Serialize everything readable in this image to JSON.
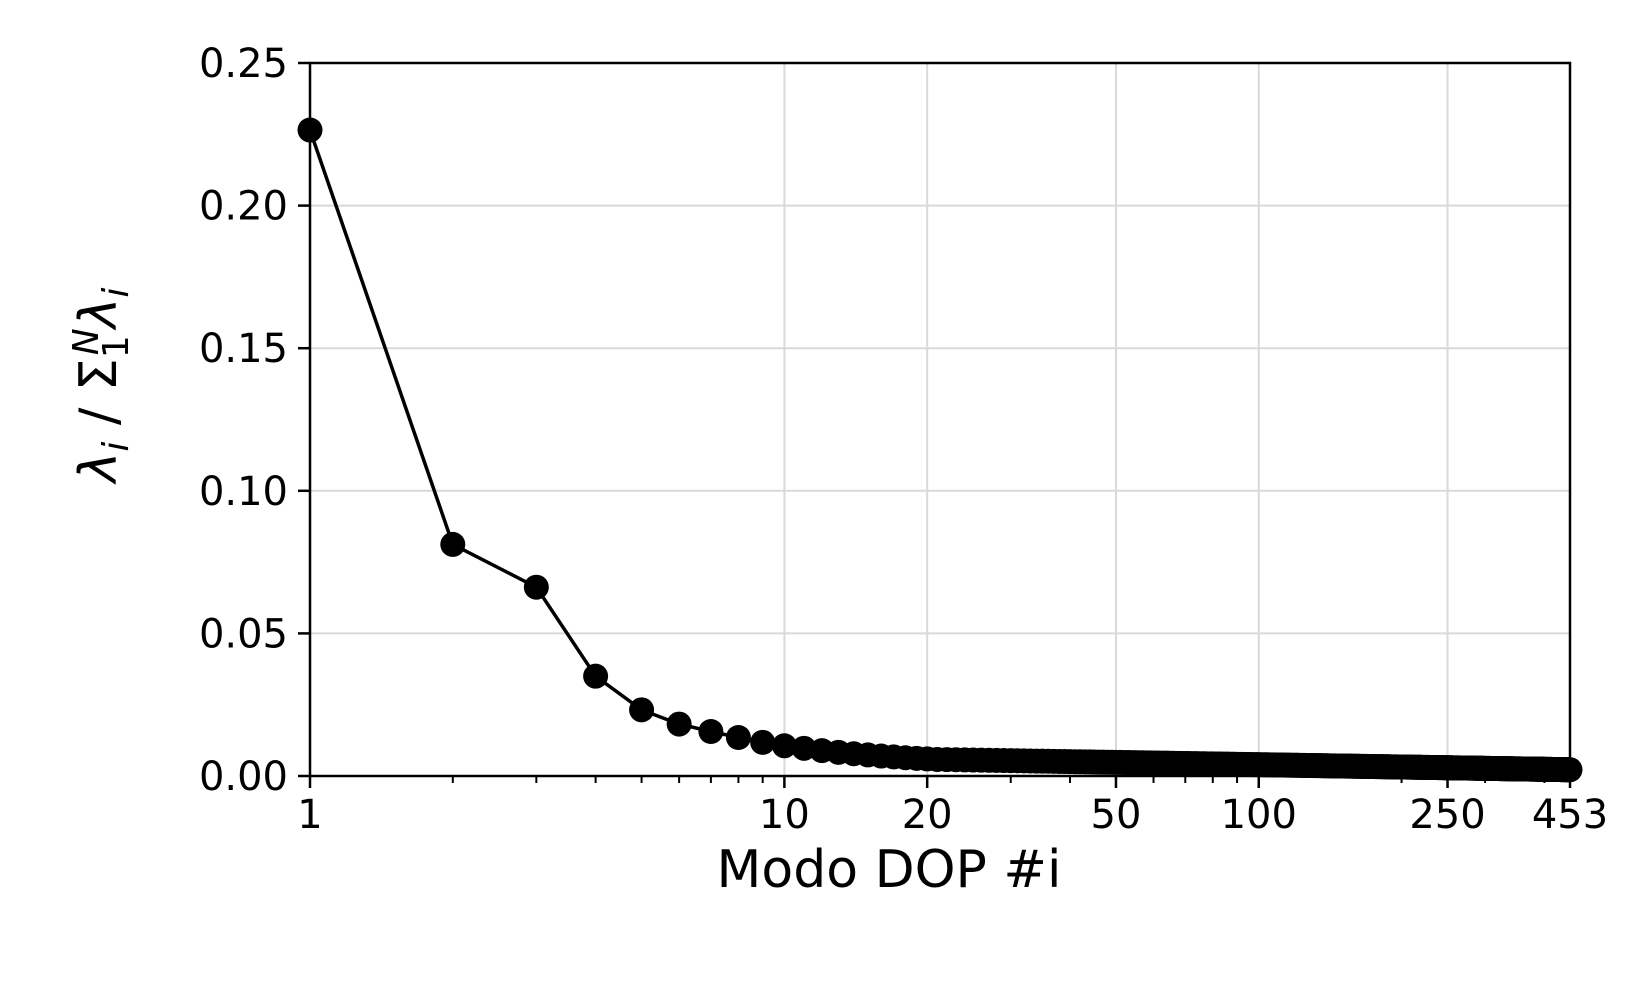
{
  "chart_data": {
    "type": "line",
    "xscale": "log",
    "xlim": [
      1,
      453
    ],
    "ylim": [
      0,
      0.25
    ],
    "grid": true,
    "xlabel": "Modo DOP #i",
    "ylabel": {
      "lambda": "λ",
      "sub_i": "i",
      "slash": " / ",
      "sigma": "Σ",
      "sub_1": "1",
      "sup_N": "N",
      "lambda2": "λ",
      "sub_i2": "i"
    },
    "x_ticks": [
      {
        "value": 1,
        "label": "1"
      },
      {
        "value": 10,
        "label": "10"
      },
      {
        "value": 20,
        "label": "20"
      },
      {
        "value": 50,
        "label": "50"
      },
      {
        "value": 100,
        "label": "100"
      },
      {
        "value": 250,
        "label": "250"
      },
      {
        "value": 453,
        "label": "453"
      }
    ],
    "x_minor_ticks": [
      2,
      3,
      4,
      5,
      6,
      7,
      8,
      9,
      30,
      40,
      60,
      70,
      80,
      90,
      200,
      300,
      400
    ],
    "y_ticks": [
      {
        "value": 0.0,
        "label": "0.00"
      },
      {
        "value": 0.05,
        "label": "0.05"
      },
      {
        "value": 0.1,
        "label": "0.10"
      },
      {
        "value": 0.15,
        "label": "0.15"
      },
      {
        "value": 0.2,
        "label": "0.20"
      },
      {
        "value": 0.25,
        "label": "0.25"
      }
    ],
    "series": [
      {
        "color": "#000000",
        "marker": "circle",
        "head": [
          [
            1,
            0.2265
          ],
          [
            2,
            0.0812
          ],
          [
            3,
            0.0662
          ],
          [
            4,
            0.035
          ],
          [
            5,
            0.0232
          ],
          [
            6,
            0.0182
          ],
          [
            7,
            0.0156
          ],
          [
            8,
            0.0135
          ],
          [
            9,
            0.0118
          ],
          [
            10,
            0.0106
          ],
          [
            11,
            0.0097
          ],
          [
            12,
            0.0089
          ],
          [
            13,
            0.0083
          ],
          [
            14,
            0.0078
          ],
          [
            15,
            0.0074
          ],
          [
            16,
            0.007
          ],
          [
            17,
            0.0067
          ],
          [
            18,
            0.0064
          ],
          [
            19,
            0.0062
          ],
          [
            20,
            0.006
          ]
        ],
        "tail": {
          "x_start": 21,
          "x_end": 453,
          "y_start": 0.0058,
          "y_end": 0.0022
        }
      }
    ]
  }
}
